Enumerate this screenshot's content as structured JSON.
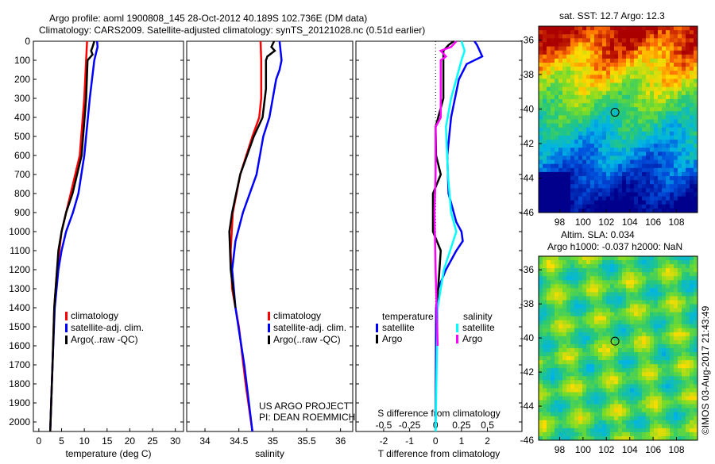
{
  "title_line1": "Argo profile: aoml 1900808_145 28-Oct-2012 40.189S 102.736E (DM data)",
  "title_line2": "Climatology: CARS2009. Satellite-adjusted climatology: synTS_20121028.nc (0.51d earlier)",
  "colors": {
    "climatology": "#ff0000",
    "satellite": "#0000ff",
    "argo": "#000000",
    "sal_satellite": "#00ffff",
    "sal_argo": "#ff00ff"
  },
  "chart_data": [
    {
      "type": "line",
      "xlabel": "temperature (deg C)",
      "ylabel": "depth",
      "xlim": [
        -1.2,
        31.8
      ],
      "ylim": [
        2050,
        0
      ],
      "xticks": [
        "0",
        "5",
        "10",
        "15",
        "20",
        "25",
        "30"
      ],
      "xtick_values": [
        0,
        5,
        10,
        15,
        20,
        25,
        30
      ],
      "yticks": [
        "0",
        "100",
        "200",
        "300",
        "400",
        "500",
        "600",
        "700",
        "800",
        "900",
        "1000",
        "1100",
        "1200",
        "1300",
        "1400",
        "1500",
        "1600",
        "1700",
        "1800",
        "1900",
        "2000"
      ],
      "legend": [
        "climatology",
        "satellite-adj. clim.",
        "Argo(..raw -QC)"
      ],
      "series": [
        {
          "name": "climatology",
          "color": "#ff0000",
          "depth": [
            0,
            100,
            300,
            600,
            800,
            1000,
            1200,
            1400,
            1700,
            2050
          ],
          "values": [
            10.6,
            10.4,
            10.0,
            9.0,
            7.0,
            5.0,
            4.0,
            3.4,
            3.0,
            2.5
          ]
        },
        {
          "name": "satellite",
          "color": "#0000ff",
          "depth": [
            0,
            30,
            60,
            100,
            300,
            600,
            800,
            900,
            1000,
            1100,
            1200,
            1400,
            1700,
            2050
          ],
          "values": [
            12.8,
            12.9,
            12.6,
            12.2,
            11.2,
            10.0,
            8.7,
            7.5,
            6.0,
            5.0,
            4.3,
            3.5,
            3.0,
            2.5
          ]
        },
        {
          "name": "Argo",
          "color": "#000000",
          "depth": [
            0,
            30,
            50,
            70,
            100,
            300,
            600,
            800,
            900,
            1000,
            1100,
            1200,
            1400,
            1700,
            2050
          ],
          "values": [
            12.2,
            11.8,
            11.5,
            11.8,
            10.7,
            10.4,
            9.4,
            7.4,
            6.0,
            5.0,
            4.3,
            4.0,
            3.4,
            3.0,
            2.5
          ]
        }
      ]
    },
    {
      "type": "line",
      "xlabel": "salinity",
      "xlim": [
        33.73,
        36.18
      ],
      "ylim": [
        2050,
        0
      ],
      "xticks": [
        "34",
        "34.5",
        "35",
        "35.5",
        "36"
      ],
      "xtick_values": [
        34,
        34.5,
        35,
        35.5,
        36
      ],
      "legend": [
        "climatology",
        "satellite-adj. clim.",
        "Argo(..raw -QC)"
      ],
      "annotation": [
        "US ARGO PROJECT",
        "PI: DEAN ROEMMICH"
      ],
      "series": [
        {
          "name": "climatology",
          "color": "#ff0000",
          "depth": [
            0,
            100,
            300,
            400,
            500,
            700,
            900,
            1100,
            1300,
            1500,
            1800,
            2050
          ],
          "values": [
            34.82,
            34.83,
            34.83,
            34.8,
            34.7,
            34.52,
            34.41,
            34.38,
            34.4,
            34.5,
            34.6,
            34.7
          ]
        },
        {
          "name": "satellite",
          "color": "#0000ff",
          "depth": [
            0,
            100,
            150,
            200,
            400,
            500,
            700,
            900,
            1050,
            1200,
            1400,
            1700,
            2050
          ],
          "values": [
            35.1,
            35.13,
            35.1,
            35.05,
            34.95,
            34.86,
            34.76,
            34.56,
            34.45,
            34.4,
            34.45,
            34.58,
            34.7
          ]
        },
        {
          "name": "Argo",
          "color": "#000000",
          "depth": [
            0,
            30,
            50,
            80,
            100,
            250,
            400,
            500,
            700,
            900,
            1000,
            1200,
            1400
          ],
          "values": [
            35.02,
            34.98,
            35.03,
            34.92,
            34.9,
            34.9,
            34.85,
            34.72,
            34.52,
            34.4,
            34.36,
            34.38,
            34.45
          ]
        }
      ]
    },
    {
      "type": "line",
      "xlabel": "T difference from climatology",
      "xlabel2": "S difference from climatology",
      "xlim": [
        -3.07,
        3.33
      ],
      "ylim": [
        2050,
        0
      ],
      "xticks": [
        "-2",
        "-1",
        "0",
        "1",
        "2"
      ],
      "xtick_values": [
        -2,
        -1,
        0,
        1,
        2
      ],
      "xticks2": [
        "-0.5",
        "-0.25",
        "0",
        "0.25",
        "0.5"
      ],
      "xtick_values2": [
        -0.5,
        -0.25,
        0,
        0.25,
        0.5
      ],
      "legend_headers": [
        "temperature",
        "salinity"
      ],
      "legend": [
        "satellite",
        "Argo",
        "satellite",
        "Argo"
      ],
      "series": [
        {
          "name": "T satellite",
          "color": "#0000ff",
          "axis": "T",
          "depth": [
            0,
            20,
            50,
            80,
            120,
            200,
            400,
            600,
            800,
            950,
            1000,
            1050,
            1100,
            1200,
            1300,
            1400,
            2050
          ],
          "values": [
            1.5,
            1.6,
            1.7,
            1.8,
            1.2,
            0.9,
            0.6,
            0.45,
            0.5,
            0.8,
            1.0,
            1.05,
            0.8,
            0.4,
            0.1,
            0.02,
            0.0
          ]
        },
        {
          "name": "T Argo",
          "color": "#000000",
          "axis": "T",
          "depth": [
            0,
            20,
            50,
            100,
            300,
            450,
            600,
            700,
            800,
            1000,
            1100,
            1300,
            1400,
            1500
          ],
          "values": [
            0.7,
            0.5,
            0.3,
            0.3,
            0.3,
            0.0,
            0.02,
            0.2,
            -0.1,
            -0.1,
            0.2,
            0.1,
            0.05,
            0.05
          ]
        },
        {
          "name": "S satellite",
          "color": "#00ffff",
          "axis": "S",
          "depth": [
            0,
            50,
            100,
            300,
            450,
            700,
            900,
            1000,
            1200,
            1400,
            2050
          ],
          "values": [
            0.25,
            0.28,
            0.25,
            0.15,
            0.1,
            0.12,
            0.15,
            0.2,
            0.08,
            0.02,
            0.0
          ]
        },
        {
          "name": "S Argo",
          "color": "#ff00ff",
          "axis": "S",
          "depth": [
            0,
            30,
            50,
            80,
            100,
            400,
            450,
            700,
            900,
            1200,
            1600
          ],
          "values": [
            0.2,
            0.15,
            0.05,
            0.1,
            0.05,
            0.05,
            0.0,
            0.0,
            -0.01,
            0.0,
            0.02
          ]
        }
      ]
    }
  ],
  "map_top": {
    "title": "sat. SST: 12.7 Argo: 12.3",
    "lat_ticks": [
      "-36",
      "-38",
      "-40",
      "-42",
      "-44",
      "-46"
    ],
    "lon_ticks": [
      "98",
      "100",
      "102",
      "104",
      "106",
      "108"
    ]
  },
  "map_bottom": {
    "title_line1": "Altim. SLA: 0.034",
    "title_line2": "Argo h1000: -0.037 h2000: NaN",
    "lat_ticks": [
      "-36",
      "-38",
      "-40",
      "-42",
      "-44",
      "-46"
    ],
    "lon_ticks": [
      "98",
      "100",
      "102",
      "104",
      "106",
      "108"
    ]
  },
  "credit": "©IMOS 03-Aug-2017 21:43:49"
}
